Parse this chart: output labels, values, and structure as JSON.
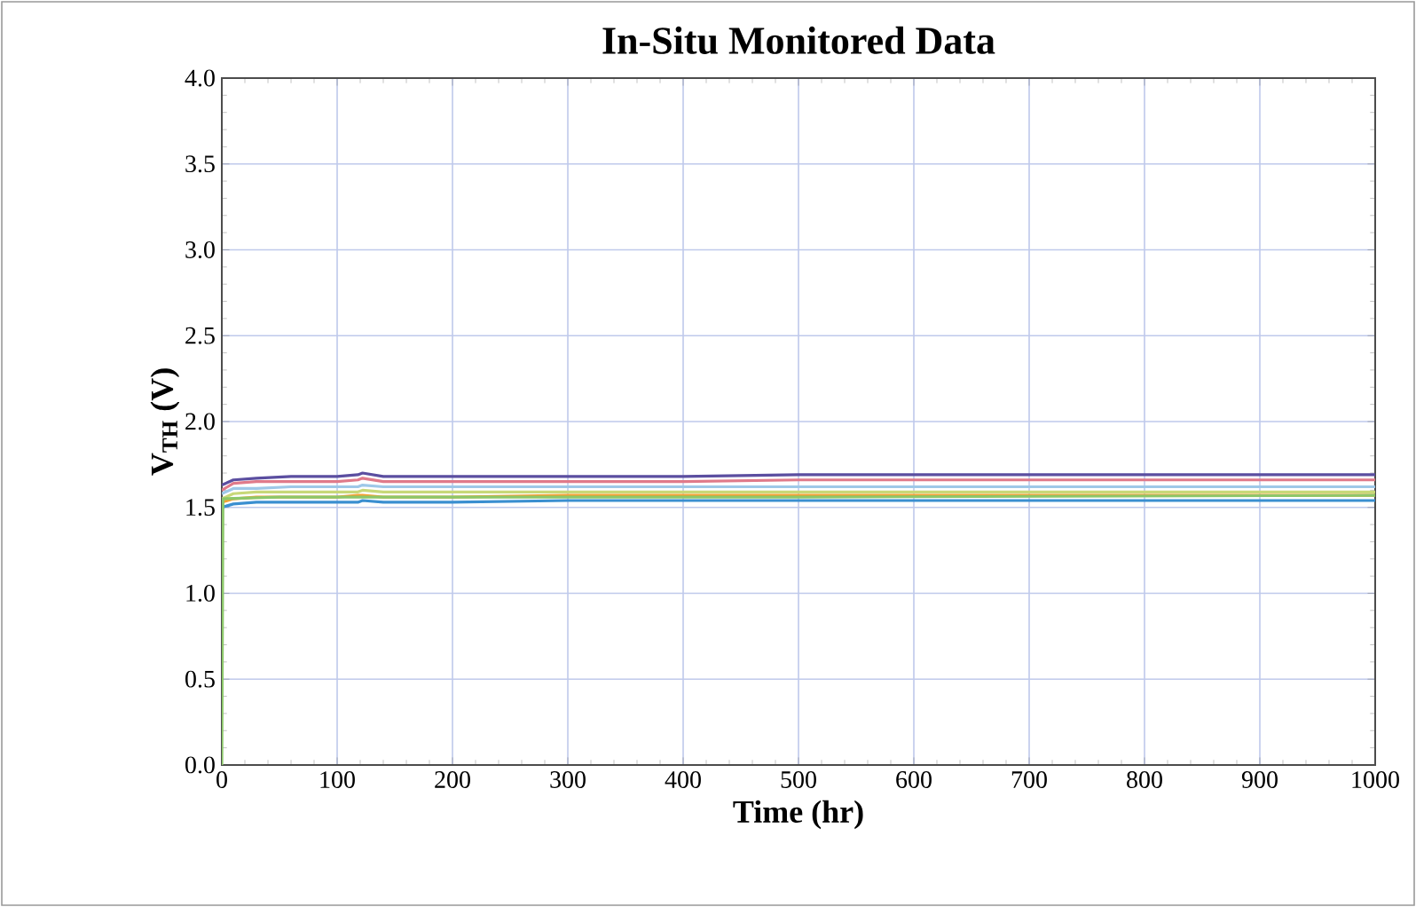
{
  "chart_data": {
    "type": "line",
    "title": "In-Situ Monitored Data",
    "xlabel": "Time (hr)",
    "ylabel": "V$_{TH}$ (V)",
    "xlim": [
      0,
      1000
    ],
    "ylim": [
      0,
      4.0
    ],
    "xticks": [
      0,
      100,
      200,
      300,
      400,
      500,
      600,
      700,
      800,
      900,
      1000
    ],
    "yticks": [
      {
        "value": 0,
        "label": "0.0"
      },
      {
        "value": 0.5,
        "label": "0.5"
      },
      {
        "value": 1.0,
        "label": "1.0"
      },
      {
        "value": 1.5,
        "label": "1.5"
      },
      {
        "value": 2.0,
        "label": "2.0"
      },
      {
        "value": 2.5,
        "label": "2.5"
      },
      {
        "value": 3.0,
        "label": "3.0"
      },
      {
        "value": 3.5,
        "label": "3.5"
      },
      {
        "value": 4.0,
        "label": "4.0"
      }
    ],
    "grid": true,
    "marker": "none",
    "line_style": "solid",
    "x": [
      0,
      10,
      30,
      60,
      100,
      118,
      122,
      140,
      200,
      300,
      400,
      500,
      600,
      700,
      800,
      900,
      1000
    ],
    "series": [
      {
        "color": "#9ec8e8",
        "values": [
          1.58,
          1.61,
          1.61,
          1.62,
          1.62,
          1.62,
          1.63,
          1.62,
          1.62,
          1.62,
          1.62,
          1.62,
          1.62,
          1.62,
          1.62,
          1.62,
          1.62
        ]
      },
      {
        "color": "#e07a8a",
        "values": [
          1.6,
          1.64,
          1.65,
          1.65,
          1.65,
          1.66,
          1.67,
          1.65,
          1.65,
          1.65,
          1.65,
          1.66,
          1.66,
          1.66,
          1.66,
          1.66,
          1.66
        ]
      },
      {
        "color": "#5b4ea0",
        "values": [
          1.63,
          1.66,
          1.67,
          1.68,
          1.68,
          1.69,
          1.7,
          1.68,
          1.68,
          1.68,
          1.68,
          1.69,
          1.69,
          1.69,
          1.69,
          1.69,
          1.69
        ]
      },
      {
        "color": "#c8d878",
        "values": [
          1.55,
          1.58,
          1.59,
          1.59,
          1.59,
          1.59,
          1.6,
          1.59,
          1.59,
          1.59,
          1.59,
          1.59,
          1.59,
          1.59,
          1.59,
          1.59,
          1.59
        ]
      },
      {
        "color": "#f5a030",
        "values": [
          1.53,
          1.55,
          1.56,
          1.56,
          1.56,
          1.57,
          1.57,
          1.56,
          1.56,
          1.57,
          1.57,
          1.57,
          1.57,
          1.57,
          1.57,
          1.57,
          1.57
        ]
      },
      {
        "color": "#3a8fd0",
        "values": [
          1.5,
          1.52,
          1.53,
          1.53,
          1.53,
          1.53,
          1.54,
          1.53,
          1.53,
          1.54,
          1.54,
          1.54,
          1.54,
          1.54,
          1.54,
          1.54,
          1.54
        ]
      },
      {
        "color": "#8cc76a",
        "x": [
          0,
          1,
          50,
          200,
          500,
          1000
        ],
        "values": [
          0,
          1.55,
          1.56,
          1.56,
          1.56,
          1.57
        ]
      }
    ]
  }
}
